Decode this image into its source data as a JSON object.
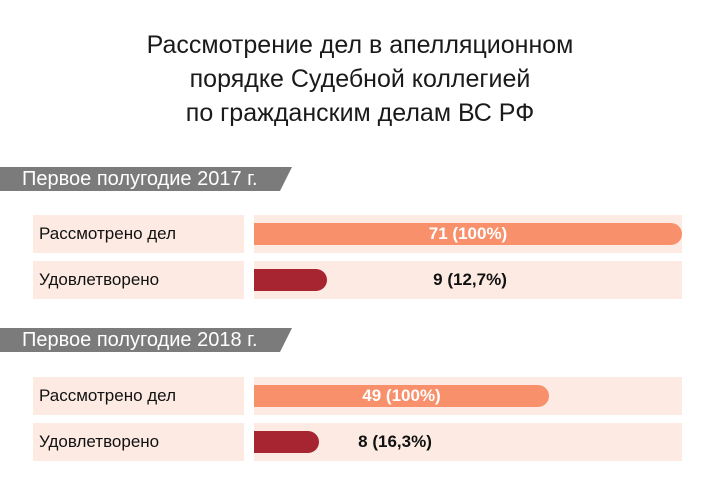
{
  "title_lines": [
    "Рассмотрение дел в апелляционном",
    "порядке Судебной коллегией",
    "по гражданским делам ВС РФ"
  ],
  "colors": {
    "considered": "#f7906b",
    "satisfied": "#a72531",
    "row_background": "#fdebe3",
    "period_background": "#7b7b7b",
    "value_on_bar": "#ffffff",
    "value_off_bar": "#111111"
  },
  "chart_data": {
    "type": "bar",
    "orientation": "horizontal",
    "title": "Рассмотрение дел в апелляционном порядке Судебной коллегией по гражданским делам ВС РФ",
    "xlim": [
      0,
      71
    ],
    "groups": [
      {
        "period": "Первое полугодие 2017 г.",
        "rows": [
          {
            "label": "Рассмотрено дел",
            "value": 71,
            "value_label": "71 (100%)",
            "kind": "considered"
          },
          {
            "label": "Удовлетворено",
            "value": 9,
            "value_label": "9 (12,7%)",
            "kind": "satisfied"
          }
        ]
      },
      {
        "period": "Первое полугодие 2018 г.",
        "rows": [
          {
            "label": "Рассмотрено дел",
            "value": 49,
            "value_label": "49 (100%)",
            "kind": "considered"
          },
          {
            "label": "Удовлетворено",
            "value": 8,
            "value_label": "8 (16,3%)",
            "kind": "satisfied"
          }
        ]
      }
    ]
  }
}
